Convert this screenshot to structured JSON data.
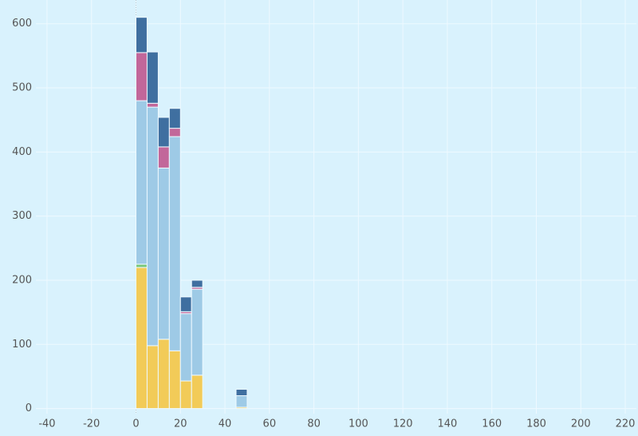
{
  "chart_data": {
    "type": "histogram",
    "bins": [
      0,
      5,
      10,
      15,
      20,
      25,
      30,
      35,
      40,
      45,
      50
    ],
    "series": [
      {
        "color": "#f2cb58",
        "values": [
          220,
          98,
          108,
          90,
          43,
          52,
          0,
          0,
          0,
          2
        ]
      },
      {
        "color": "#77c77a",
        "values": [
          5,
          0,
          0,
          0,
          0,
          0,
          0,
          0,
          0,
          0
        ]
      },
      {
        "color": "#9ecae6",
        "values": [
          255,
          372,
          267,
          334,
          105,
          134,
          0,
          0,
          0,
          18
        ]
      },
      {
        "color": "#c2679a",
        "values": [
          75,
          6,
          33,
          13,
          3,
          3,
          0,
          0,
          0,
          0
        ]
      },
      {
        "color": "#3f6fa0",
        "values": [
          55,
          80,
          46,
          31,
          23,
          11,
          0,
          0,
          0,
          10
        ]
      }
    ],
    "stacked": true,
    "xlim": [
      -45,
      225
    ],
    "xticks": [
      -40,
      -20,
      0,
      20,
      40,
      60,
      80,
      100,
      120,
      140,
      160,
      180,
      200,
      220
    ],
    "ylim": [
      -8,
      637
    ],
    "yticks": [
      0,
      100,
      200,
      300,
      400,
      500,
      600
    ],
    "grid": true
  }
}
